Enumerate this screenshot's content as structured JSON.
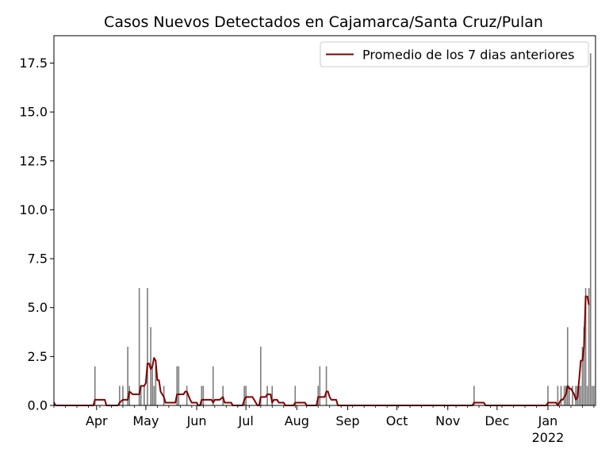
{
  "chart_data": {
    "type": "bar",
    "title": "Casos Nuevos Detectados en Cajamarca/Santa Cruz/Pulan",
    "xlabel": "",
    "ylabel": "",
    "x_start": "2021-03-06",
    "x_end": "2022-01-30",
    "ylim": [
      0,
      18.9
    ],
    "yticks": [
      0.0,
      2.5,
      5.0,
      7.5,
      10.0,
      12.5,
      15.0,
      17.5
    ],
    "xticks": [
      {
        "date": "2021-04-01",
        "label": "Apr"
      },
      {
        "date": "2021-05-01",
        "label": "May"
      },
      {
        "date": "2021-06-01",
        "label": "Jun"
      },
      {
        "date": "2021-07-01",
        "label": "Jul"
      },
      {
        "date": "2021-08-01",
        "label": "Aug"
      },
      {
        "date": "2021-09-01",
        "label": "Sep"
      },
      {
        "date": "2021-10-01",
        "label": "Oct"
      },
      {
        "date": "2021-11-01",
        "label": "Nov"
      },
      {
        "date": "2021-12-01",
        "label": "Dec"
      },
      {
        "date": "2022-01-01",
        "label": "Jan",
        "sublabel": "2022"
      }
    ],
    "grid": false,
    "legend_position": "upper right",
    "bar_color": "#808080",
    "series": [
      {
        "type": "bar",
        "points": [
          [
            "2021-03-31",
            2
          ],
          [
            "2021-04-15",
            1
          ],
          [
            "2021-04-17",
            1
          ],
          [
            "2021-04-20",
            3
          ],
          [
            "2021-04-21",
            1
          ],
          [
            "2021-04-27",
            6
          ],
          [
            "2021-04-28",
            1
          ],
          [
            "2021-04-30",
            1
          ],
          [
            "2021-05-02",
            6
          ],
          [
            "2021-05-04",
            4
          ],
          [
            "2021-05-05",
            2
          ],
          [
            "2021-05-06",
            1
          ],
          [
            "2021-05-07",
            2
          ],
          [
            "2021-05-12",
            1
          ],
          [
            "2021-05-20",
            2
          ],
          [
            "2021-05-21",
            2
          ],
          [
            "2021-05-26",
            1
          ],
          [
            "2021-06-04",
            1
          ],
          [
            "2021-06-05",
            1
          ],
          [
            "2021-06-11",
            2
          ],
          [
            "2021-06-17",
            1
          ],
          [
            "2021-06-30",
            1
          ],
          [
            "2021-07-01",
            1
          ],
          [
            "2021-07-10",
            3
          ],
          [
            "2021-07-14",
            1
          ],
          [
            "2021-07-17",
            1
          ],
          [
            "2021-07-31",
            1
          ],
          [
            "2021-08-14",
            1
          ],
          [
            "2021-08-15",
            2
          ],
          [
            "2021-08-19",
            2
          ],
          [
            "2021-11-17",
            1
          ],
          [
            "2022-01-01",
            1
          ],
          [
            "2022-01-07",
            1
          ],
          [
            "2022-01-09",
            1
          ],
          [
            "2022-01-11",
            1
          ],
          [
            "2022-01-12",
            1
          ],
          [
            "2022-01-13",
            4
          ],
          [
            "2022-01-14",
            1
          ],
          [
            "2022-01-16",
            1
          ],
          [
            "2022-01-18",
            1
          ],
          [
            "2022-01-19",
            1
          ],
          [
            "2022-01-20",
            1
          ],
          [
            "2022-01-21",
            1
          ],
          [
            "2022-01-22",
            3
          ],
          [
            "2022-01-23",
            4
          ],
          [
            "2022-01-24",
            6
          ],
          [
            "2022-01-25",
            1
          ],
          [
            "2022-01-26",
            6
          ],
          [
            "2022-01-27",
            18
          ],
          [
            "2022-01-28",
            1
          ],
          [
            "2022-01-29",
            1
          ]
        ]
      },
      {
        "name": "Promedio de los 7 dias anteriores",
        "type": "line",
        "color": "#800000",
        "points": [
          [
            "2021-03-06",
            0.15
          ],
          [
            "2021-03-07",
            0
          ],
          [
            "2021-03-30",
            0
          ],
          [
            "2021-03-31",
            0.29
          ],
          [
            "2021-04-06",
            0.29
          ],
          [
            "2021-04-07",
            0
          ],
          [
            "2021-04-14",
            0
          ],
          [
            "2021-04-15",
            0.14
          ],
          [
            "2021-04-17",
            0.29
          ],
          [
            "2021-04-20",
            0.29
          ],
          [
            "2021-04-21",
            0.71
          ],
          [
            "2021-04-23",
            0.57
          ],
          [
            "2021-04-27",
            0.57
          ],
          [
            "2021-04-28",
            1.0
          ],
          [
            "2021-04-30",
            1.0
          ],
          [
            "2021-05-01",
            1.14
          ],
          [
            "2021-05-02",
            2.14
          ],
          [
            "2021-05-03",
            2.14
          ],
          [
            "2021-05-04",
            1.86
          ],
          [
            "2021-05-05",
            2.0
          ],
          [
            "2021-05-06",
            2.43
          ],
          [
            "2021-05-07",
            2.29
          ],
          [
            "2021-05-08",
            1.29
          ],
          [
            "2021-05-09",
            1.29
          ],
          [
            "2021-05-10",
            0.71
          ],
          [
            "2021-05-12",
            0.43
          ],
          [
            "2021-05-13",
            0.14
          ],
          [
            "2021-05-19",
            0.14
          ],
          [
            "2021-05-20",
            0.57
          ],
          [
            "2021-05-21",
            0.57
          ],
          [
            "2021-05-24",
            0.57
          ],
          [
            "2021-05-25",
            0.71
          ],
          [
            "2021-05-26",
            0.71
          ],
          [
            "2021-05-28",
            0.29
          ],
          [
            "2021-05-29",
            0.14
          ],
          [
            "2021-06-01",
            0.14
          ],
          [
            "2021-06-02",
            0
          ],
          [
            "2021-06-03",
            0
          ],
          [
            "2021-06-04",
            0.29
          ],
          [
            "2021-06-10",
            0.29
          ],
          [
            "2021-06-11",
            0.14
          ],
          [
            "2021-06-12",
            0.29
          ],
          [
            "2021-06-15",
            0.29
          ],
          [
            "2021-06-17",
            0.43
          ],
          [
            "2021-06-18",
            0.14
          ],
          [
            "2021-06-22",
            0.14
          ],
          [
            "2021-06-23",
            0
          ],
          [
            "2021-06-29",
            0
          ],
          [
            "2021-06-30",
            0.29
          ],
          [
            "2021-07-01",
            0.43
          ],
          [
            "2021-07-05",
            0.43
          ],
          [
            "2021-07-08",
            0
          ],
          [
            "2021-07-09",
            0
          ],
          [
            "2021-07-10",
            0.43
          ],
          [
            "2021-07-13",
            0.43
          ],
          [
            "2021-07-14",
            0.57
          ],
          [
            "2021-07-16",
            0.57
          ],
          [
            "2021-07-17",
            0.14
          ],
          [
            "2021-07-18",
            0.29
          ],
          [
            "2021-07-20",
            0.29
          ],
          [
            "2021-07-21",
            0.14
          ],
          [
            "2021-07-24",
            0.14
          ],
          [
            "2021-07-25",
            0
          ],
          [
            "2021-07-30",
            0
          ],
          [
            "2021-07-31",
            0.14
          ],
          [
            "2021-08-06",
            0.14
          ],
          [
            "2021-08-07",
            0
          ],
          [
            "2021-08-13",
            0
          ],
          [
            "2021-08-14",
            0.43
          ],
          [
            "2021-08-18",
            0.43
          ],
          [
            "2021-08-19",
            0.71
          ],
          [
            "2021-08-20",
            0.71
          ],
          [
            "2021-08-21",
            0.43
          ],
          [
            "2021-08-22",
            0.29
          ],
          [
            "2021-08-25",
            0.29
          ],
          [
            "2021-08-26",
            0
          ],
          [
            "2021-11-16",
            0
          ],
          [
            "2021-11-17",
            0.14
          ],
          [
            "2021-11-23",
            0.14
          ],
          [
            "2021-11-24",
            0
          ],
          [
            "2021-12-31",
            0
          ],
          [
            "2022-01-01",
            0.14
          ],
          [
            "2022-01-06",
            0.14
          ],
          [
            "2022-01-07",
            0
          ],
          [
            "2022-01-08",
            0.14
          ],
          [
            "2022-01-09",
            0.29
          ],
          [
            "2022-01-10",
            0.29
          ],
          [
            "2022-01-11",
            0.43
          ],
          [
            "2022-01-12",
            0.57
          ],
          [
            "2022-01-13",
            1.0
          ],
          [
            "2022-01-14",
            0.86
          ],
          [
            "2022-01-15",
            0.86
          ],
          [
            "2022-01-16",
            0.71
          ],
          [
            "2022-01-17",
            0.57
          ],
          [
            "2022-01-18",
            0.29
          ],
          [
            "2022-01-19",
            0.43
          ],
          [
            "2022-01-20",
            1.29
          ],
          [
            "2022-01-21",
            2.29
          ],
          [
            "2022-01-22",
            2.29
          ],
          [
            "2022-01-23",
            3.0
          ],
          [
            "2022-01-24",
            5.57
          ],
          [
            "2022-01-25",
            5.57
          ],
          [
            "2022-01-26",
            5.14
          ]
        ]
      }
    ]
  }
}
